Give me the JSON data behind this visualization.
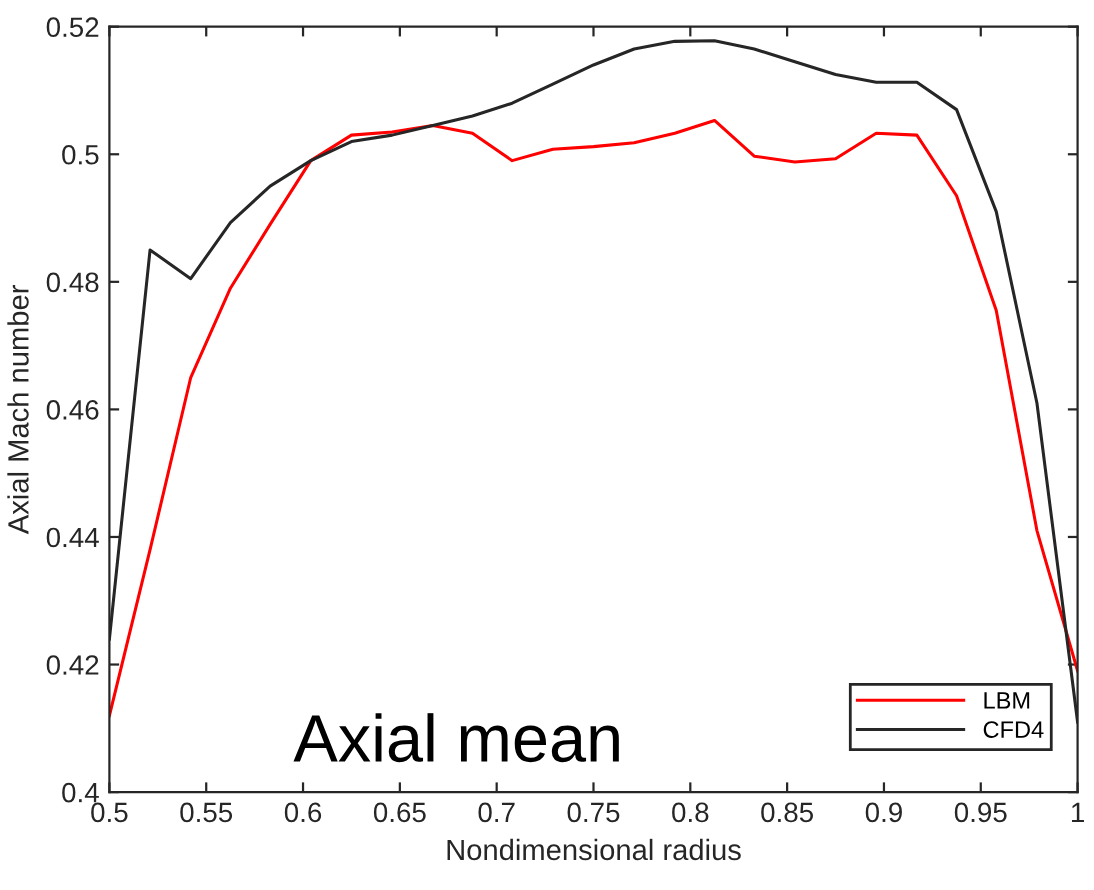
{
  "chart_data": {
    "type": "line",
    "xlabel": "Nondimensional radius",
    "ylabel": "Axial Mach number",
    "annotations": [
      "Axial mean"
    ],
    "x": [
      0.5,
      0.521,
      0.542,
      0.5625,
      0.583,
      0.604,
      0.625,
      0.646,
      0.667,
      0.6875,
      0.708,
      0.729,
      0.75,
      0.771,
      0.792,
      0.8125,
      0.833,
      0.854,
      0.875,
      0.896,
      0.917,
      0.9375,
      0.958,
      0.979,
      1.0
    ],
    "series": [
      {
        "name": "LBM",
        "color": "#ff0000",
        "values": [
          0.412,
          0.438,
          0.465,
          0.479,
          0.489,
          0.499,
          0.503,
          0.5035,
          0.5045,
          0.5033,
          0.499,
          0.5008,
          0.5012,
          0.5018,
          0.5033,
          0.5053,
          0.4997,
          0.4988,
          0.4993,
          0.5033,
          0.503,
          0.4935,
          0.4755,
          0.441,
          0.419
        ]
      },
      {
        "name": "CFD4",
        "color": "#262626",
        "values": [
          0.424,
          0.485,
          0.4805,
          0.4893,
          0.495,
          0.499,
          0.502,
          0.503,
          0.5045,
          0.506,
          0.508,
          0.511,
          0.514,
          0.5165,
          0.5177,
          0.5178,
          0.5165,
          0.5145,
          0.5125,
          0.5113,
          0.5113,
          0.507,
          0.491,
          0.461,
          0.411
        ]
      }
    ],
    "xlim": [
      0.5,
      1
    ],
    "ylim": [
      0.4,
      0.52
    ],
    "xticks": [
      0.5,
      0.55,
      0.6,
      0.65,
      0.7,
      0.75,
      0.8,
      0.85,
      0.9,
      0.95,
      1
    ],
    "yticks": [
      0.4,
      0.42,
      0.44,
      0.46,
      0.48,
      0.5,
      0.52
    ],
    "legend": "bottom right",
    "grid": false
  }
}
